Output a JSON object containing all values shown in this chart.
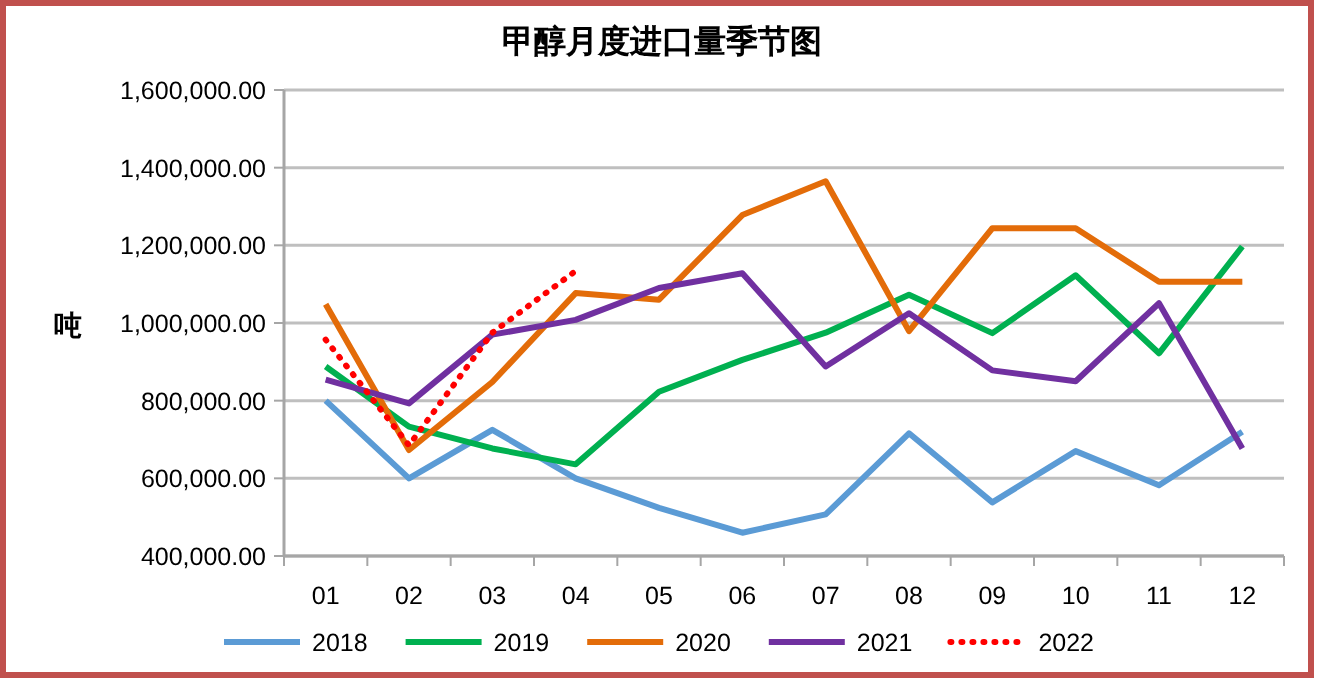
{
  "chart_data": {
    "type": "line",
    "title": "甲醇月度进口量季节图",
    "ylabel": "吨",
    "categories": [
      "01",
      "02",
      "03",
      "04",
      "05",
      "06",
      "07",
      "08",
      "09",
      "10",
      "11",
      "12"
    ],
    "series": [
      {
        "name": "2018",
        "color": "#5b9bd5",
        "values": [
          800000,
          600000,
          725000,
          600000,
          524000,
          460000,
          507000,
          716000,
          538000,
          670000,
          582000,
          720000
        ]
      },
      {
        "name": "2019",
        "color": "#00b050",
        "values": [
          888000,
          733000,
          677000,
          636000,
          823000,
          905000,
          975000,
          1073000,
          974000,
          1123000,
          922000,
          1197000
        ]
      },
      {
        "name": "2020",
        "color": "#e36c09",
        "values": [
          1048000,
          673000,
          848000,
          1077000,
          1060000,
          1278000,
          1365000,
          979000,
          1244000,
          1244000,
          1106000,
          1106000
        ]
      },
      {
        "name": "2021",
        "color": "#7030a0",
        "values": [
          854000,
          793000,
          970000,
          1008000,
          1090000,
          1128000,
          888000,
          1025000,
          878000,
          850000,
          1051000,
          677000
        ]
      },
      {
        "name": "2022",
        "color": "#ff0000",
        "line_style": "dotted",
        "values": [
          957000,
          685000,
          975000,
          1134000,
          null,
          null,
          null,
          null,
          null,
          null,
          null,
          null
        ]
      }
    ],
    "ylim": [
      400000,
      1600000
    ],
    "yticks": [
      {
        "value": 400000,
        "label": "400,000.00"
      },
      {
        "value": 600000,
        "label": "600,000.00"
      },
      {
        "value": 800000,
        "label": "800,000.00"
      },
      {
        "value": 1000000,
        "label": "1,000,000.00"
      },
      {
        "value": 1200000,
        "label": "1,200,000.00"
      },
      {
        "value": 1400000,
        "label": "1,400,000.00"
      },
      {
        "value": 1600000,
        "label": "1,600,000.00"
      }
    ],
    "grid": "y",
    "legend": "bottom"
  }
}
